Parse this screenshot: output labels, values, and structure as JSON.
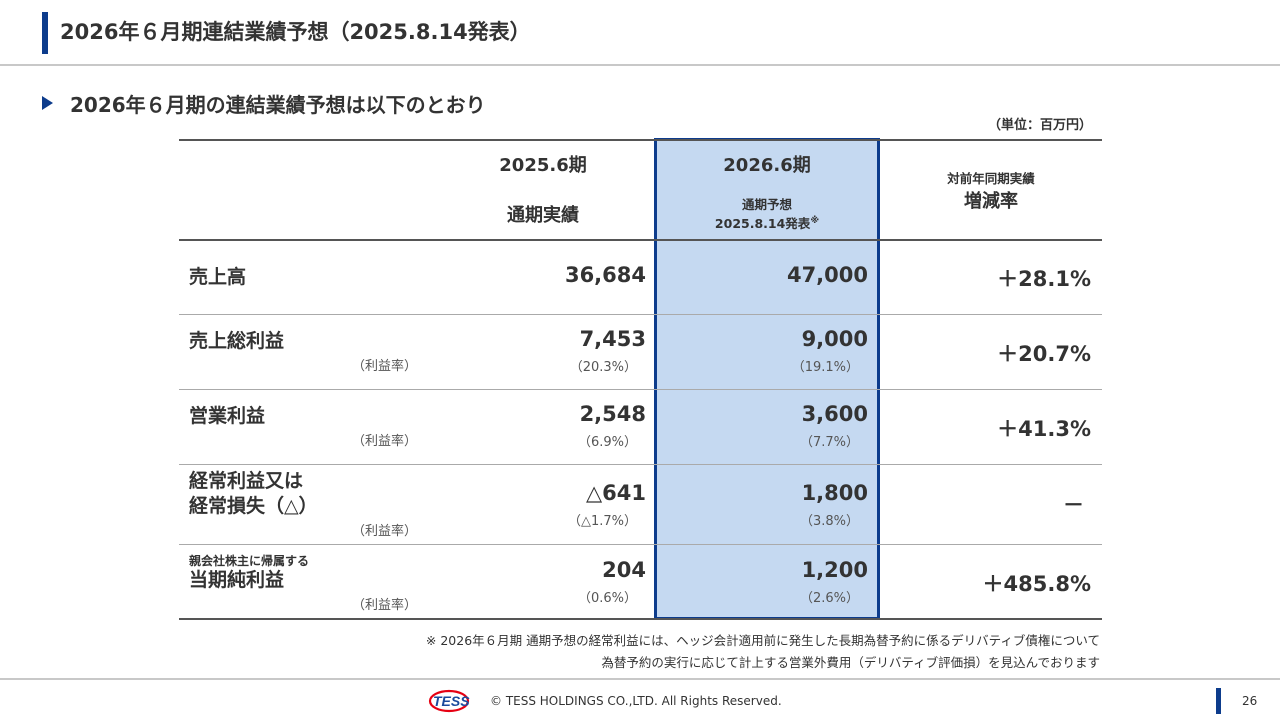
{
  "header": {
    "title": "2026年６月期連結業績予想（2025.8.14発表）"
  },
  "subheading": {
    "text": "2026年６月期の連結業績予想は以下のとおり"
  },
  "unit_label": "（単位：百万円）",
  "table": {
    "col_actual": {
      "period": "2025.6期",
      "desc": "通期実績"
    },
    "col_forecast": {
      "period": "2026.6期",
      "desc": "通期予想",
      "date": "2025.8.14発表",
      "note_mark": "※"
    },
    "col_change": {
      "desc": "対前年同期実績",
      "label": "増減率"
    },
    "ratio_label": "（利益率）",
    "rows": [
      {
        "label": "売上高",
        "actual": "36,684",
        "forecast": "47,000",
        "change": "＋28.1%"
      },
      {
        "label": "売上総利益",
        "actual": "7,453",
        "actual_ratio": "（20.3%）",
        "forecast": "9,000",
        "forecast_ratio": "（19.1%）",
        "change": "＋20.7%"
      },
      {
        "label": "営業利益",
        "actual": "2,548",
        "actual_ratio": "（6.9%）",
        "forecast": "3,600",
        "forecast_ratio": "（7.7%）",
        "change": "＋41.3%"
      },
      {
        "label_line1": "経常利益又は",
        "label_line2": "経常損失（△）",
        "actual": "△641",
        "actual_ratio": "（△1.7%）",
        "forecast": "1,800",
        "forecast_ratio": "（3.8%）",
        "change": "－"
      },
      {
        "label_small": "親会社株主に帰属する",
        "label": "当期純利益",
        "actual": "204",
        "actual_ratio": "（0.6%）",
        "forecast": "1,200",
        "forecast_ratio": "（2.6%）",
        "change": "＋485.8%"
      }
    ]
  },
  "footnote": {
    "line1": "※ 2026年６月期 通期予想の経常利益には、ヘッジ会計適用前に発生した長期為替予約に係るデリバティブ債権について",
    "line2": "為替予約の実行に応じて計上する営業外費用（デリバティブ評価損）を見込んでおります"
  },
  "footer": {
    "logo_text": "TESS",
    "copyright": "© TESS HOLDINGS CO.,LTD. All Rights Reserved.",
    "page_number": "26"
  },
  "colors": {
    "accent": "#0d3c8c",
    "highlight": "#c5d9f1",
    "logo_red": "#e60012"
  }
}
